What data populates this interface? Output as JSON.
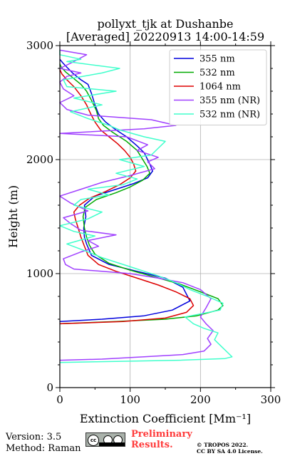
{
  "chart_data": {
    "type": "line",
    "title": [
      "pollyxt_tjk at Dushanbe",
      "[Averaged] 20220913 14:00-14:59"
    ],
    "xlabel": "Extinction Coefficient [Mm⁻¹]",
    "ylabel": "Height (m)",
    "xlim": [
      0,
      300
    ],
    "ylim": [
      0,
      3000
    ],
    "xticks": [
      0,
      100,
      200,
      300
    ],
    "yticks": [
      0,
      1000,
      2000,
      3000
    ],
    "grid": true,
    "legend_position": "top-right",
    "series": [
      {
        "name": "355 nm",
        "color": "#0000dd",
        "points": [
          [
            0,
            580
          ],
          [
            60,
            600
          ],
          [
            120,
            630
          ],
          [
            160,
            680
          ],
          [
            185,
            760
          ],
          [
            175,
            880
          ],
          [
            150,
            960
          ],
          [
            110,
            1020
          ],
          [
            70,
            1080
          ],
          [
            45,
            1160
          ],
          [
            38,
            1260
          ],
          [
            35,
            1320
          ],
          [
            34,
            1400
          ],
          [
            37,
            1500
          ],
          [
            35,
            1600
          ],
          [
            50,
            1680
          ],
          [
            80,
            1740
          ],
          [
            105,
            1790
          ],
          [
            125,
            1840
          ],
          [
            132,
            1900
          ],
          [
            128,
            1960
          ],
          [
            120,
            2060
          ],
          [
            110,
            2120
          ],
          [
            95,
            2200
          ],
          [
            80,
            2260
          ],
          [
            65,
            2330
          ],
          [
            55,
            2400
          ],
          [
            50,
            2480
          ],
          [
            45,
            2580
          ],
          [
            40,
            2660
          ],
          [
            30,
            2700
          ],
          [
            18,
            2760
          ],
          [
            10,
            2810
          ],
          [
            4,
            2850
          ],
          [
            0,
            2880
          ]
        ]
      },
      {
        "name": "532 nm",
        "color": "#00aa00",
        "points": [
          [
            0,
            560
          ],
          [
            80,
            580
          ],
          [
            150,
            600
          ],
          [
            195,
            630
          ],
          [
            225,
            680
          ],
          [
            232,
            720
          ],
          [
            225,
            780
          ],
          [
            200,
            840
          ],
          [
            170,
            910
          ],
          [
            135,
            970
          ],
          [
            100,
            1030
          ],
          [
            70,
            1090
          ],
          [
            50,
            1170
          ],
          [
            42,
            1250
          ],
          [
            38,
            1320
          ],
          [
            35,
            1400
          ],
          [
            33,
            1500
          ],
          [
            36,
            1580
          ],
          [
            52,
            1650
          ],
          [
            80,
            1710
          ],
          [
            100,
            1760
          ],
          [
            118,
            1820
          ],
          [
            128,
            1880
          ],
          [
            124,
            1940
          ],
          [
            118,
            2000
          ],
          [
            110,
            2080
          ],
          [
            95,
            2160
          ],
          [
            75,
            2240
          ],
          [
            62,
            2300
          ],
          [
            55,
            2360
          ],
          [
            52,
            2430
          ],
          [
            45,
            2520
          ],
          [
            38,
            2600
          ],
          [
            30,
            2660
          ],
          [
            18,
            2720
          ],
          [
            8,
            2770
          ],
          [
            2,
            2810
          ],
          [
            0,
            2840
          ]
        ]
      },
      {
        "name": "1064 nm",
        "color": "#dd0000",
        "points": [
          [
            0,
            560
          ],
          [
            90,
            580
          ],
          [
            150,
            610
          ],
          [
            180,
            660
          ],
          [
            190,
            720
          ],
          [
            185,
            780
          ],
          [
            165,
            840
          ],
          [
            140,
            900
          ],
          [
            110,
            960
          ],
          [
            80,
            1020
          ],
          [
            55,
            1080
          ],
          [
            40,
            1160
          ],
          [
            35,
            1240
          ],
          [
            30,
            1320
          ],
          [
            26,
            1400
          ],
          [
            22,
            1480
          ],
          [
            20,
            1540
          ],
          [
            28,
            1600
          ],
          [
            42,
            1660
          ],
          [
            65,
            1720
          ],
          [
            85,
            1780
          ],
          [
            100,
            1840
          ],
          [
            108,
            1900
          ],
          [
            105,
            1960
          ],
          [
            100,
            2020
          ],
          [
            92,
            2080
          ],
          [
            82,
            2140
          ],
          [
            70,
            2200
          ],
          [
            58,
            2260
          ],
          [
            50,
            2330
          ],
          [
            44,
            2400
          ],
          [
            38,
            2480
          ],
          [
            30,
            2560
          ],
          [
            20,
            2640
          ],
          [
            10,
            2700
          ],
          [
            3,
            2750
          ],
          [
            0,
            2790
          ]
        ]
      },
      {
        "name": "355 nm (NR)",
        "color": "#a040ff",
        "points": [
          [
            0,
            240
          ],
          [
            60,
            250
          ],
          [
            120,
            270
          ],
          [
            175,
            290
          ],
          [
            205,
            320
          ],
          [
            215,
            380
          ],
          [
            210,
            430
          ],
          [
            218,
            500
          ],
          [
            208,
            560
          ],
          [
            200,
            620
          ],
          [
            208,
            700
          ],
          [
            215,
            780
          ],
          [
            200,
            860
          ],
          [
            175,
            920
          ],
          [
            140,
            960
          ],
          [
            100,
            1000
          ],
          [
            60,
            1020
          ],
          [
            20,
            1040
          ],
          [
            8,
            1080
          ],
          [
            5,
            1130
          ],
          [
            30,
            1190
          ],
          [
            55,
            1240
          ],
          [
            40,
            1290
          ],
          [
            80,
            1340
          ],
          [
            30,
            1380
          ],
          [
            15,
            1440
          ],
          [
            5,
            1490
          ],
          [
            40,
            1550
          ],
          [
            15,
            1620
          ],
          [
            0,
            1680
          ],
          [
            30,
            1740
          ],
          [
            60,
            1800
          ],
          [
            100,
            1860
          ],
          [
            135,
            1920
          ],
          [
            125,
            1980
          ],
          [
            140,
            2020
          ],
          [
            110,
            2080
          ],
          [
            125,
            2130
          ],
          [
            95,
            2200
          ],
          [
            0,
            2230
          ],
          [
            120,
            2270
          ],
          [
            165,
            2300
          ],
          [
            130,
            2350
          ],
          [
            40,
            2390
          ],
          [
            10,
            2440
          ],
          [
            0,
            2500
          ],
          [
            20,
            2560
          ],
          [
            5,
            2620
          ],
          [
            0,
            2680
          ],
          [
            10,
            2730
          ],
          [
            30,
            2760
          ],
          [
            0,
            2800
          ],
          [
            20,
            2860
          ],
          [
            38,
            2920
          ],
          [
            0,
            2960
          ]
        ]
      },
      {
        "name": "532 nm (NR)",
        "color": "#40ffcc",
        "points": [
          [
            0,
            220
          ],
          [
            80,
            230
          ],
          [
            170,
            240
          ],
          [
            235,
            255
          ],
          [
            245,
            270
          ],
          [
            240,
            300
          ],
          [
            230,
            360
          ],
          [
            220,
            420
          ],
          [
            225,
            480
          ],
          [
            205,
            520
          ],
          [
            190,
            560
          ],
          [
            178,
            620
          ],
          [
            228,
            680
          ],
          [
            232,
            740
          ],
          [
            210,
            800
          ],
          [
            185,
            860
          ],
          [
            165,
            920
          ],
          [
            140,
            980
          ],
          [
            120,
            1020
          ],
          [
            100,
            1060
          ],
          [
            80,
            1100
          ],
          [
            60,
            1140
          ],
          [
            40,
            1190
          ],
          [
            10,
            1260
          ],
          [
            50,
            1330
          ],
          [
            20,
            1370
          ],
          [
            0,
            1420
          ],
          [
            40,
            1480
          ],
          [
            60,
            1540
          ],
          [
            20,
            1600
          ],
          [
            30,
            1650
          ],
          [
            70,
            1690
          ],
          [
            40,
            1740
          ],
          [
            90,
            1780
          ],
          [
            110,
            1830
          ],
          [
            80,
            1880
          ],
          [
            120,
            1940
          ],
          [
            85,
            2000
          ],
          [
            130,
            2040
          ],
          [
            140,
            2100
          ],
          [
            150,
            2160
          ],
          [
            120,
            2200
          ],
          [
            85,
            2260
          ],
          [
            70,
            2300
          ],
          [
            40,
            2360
          ],
          [
            15,
            2420
          ],
          [
            60,
            2480
          ],
          [
            20,
            2540
          ],
          [
            80,
            2600
          ],
          [
            10,
            2640
          ],
          [
            5,
            2700
          ],
          [
            60,
            2760
          ],
          [
            85,
            2800
          ],
          [
            10,
            2860
          ],
          [
            30,
            2880
          ],
          [
            0,
            2920
          ],
          [
            0,
            2960
          ]
        ]
      }
    ]
  },
  "footer": {
    "version": "Version: 3.5",
    "method": "Method: Raman",
    "preliminary_line1": "Preliminary",
    "preliminary_line2": "Results.",
    "copyright": "© TROPOS 2022.",
    "license": "CC BY SA 4.0 License.",
    "cc_badge_text": "cc"
  }
}
